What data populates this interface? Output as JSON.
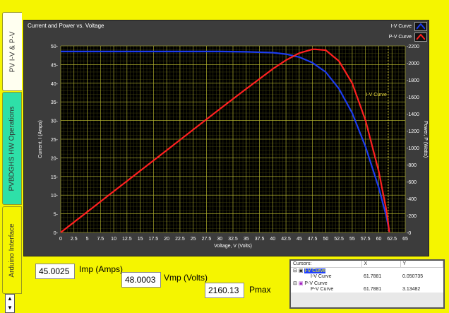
{
  "tabs": [
    {
      "label": "PV I-V & P-V",
      "active": true
    },
    {
      "label": "PVBDGHS HW Operations",
      "active": false
    },
    {
      "label": "Arduino Interface",
      "active": false
    }
  ],
  "graph": {
    "title": "Current and Power vs. Voltage",
    "legend": [
      {
        "label": "I-V Curve",
        "color": "#1c3cf0"
      },
      {
        "label": "P-V Curve",
        "color": "#ff2020"
      }
    ],
    "cursor_label": "I-V Curve"
  },
  "chart_data": {
    "type": "line",
    "xlabel": "Voltage, V (Volts)",
    "ylabel_left": "Current, I (Amps)",
    "ylabel_right": "Power, P (Watts)",
    "xlim": [
      0,
      65
    ],
    "ylim_left": [
      0,
      50
    ],
    "ylim_right": [
      0,
      2200
    ],
    "x_ticks": [
      "0",
      "2.5",
      "5",
      "7.5",
      "10",
      "12.5",
      "15",
      "17.5",
      "20",
      "22.5",
      "25",
      "27.5",
      "30",
      "32.5",
      "35",
      "37.5",
      "40",
      "42.5",
      "45",
      "47.5",
      "50",
      "52.5",
      "55",
      "57.5",
      "60",
      "62.5",
      "65"
    ],
    "y_left_ticks": [
      "0",
      "5",
      "10",
      "15",
      "20",
      "25",
      "30",
      "35",
      "40",
      "45",
      "50"
    ],
    "y_right_ticks": [
      "0",
      "200",
      "400",
      "600",
      "800",
      "1000",
      "1200",
      "1400",
      "1600",
      "1800",
      "2000",
      "2200"
    ],
    "series": [
      {
        "name": "I-V Curve",
        "axis": "left",
        "color": "#1c3cf0",
        "x": [
          0,
          10,
          20,
          30,
          35,
          40,
          42.5,
          45,
          47.5,
          50,
          52.5,
          55,
          57.5,
          60,
          61.5,
          62
        ],
        "y": [
          48.5,
          48.5,
          48.5,
          48.5,
          48.4,
          48.2,
          47.8,
          47.0,
          45.5,
          43.0,
          38.5,
          32.0,
          23.0,
          12.0,
          4.0,
          0.05
        ]
      },
      {
        "name": "P-V Curve",
        "axis": "right",
        "color": "#ff2020",
        "x": [
          0,
          10,
          20,
          30,
          35,
          40,
          42.5,
          45,
          47.5,
          48,
          50,
          52.5,
          55,
          57.5,
          60,
          61.5,
          62
        ],
        "y": [
          0,
          485,
          970,
          1455,
          1694,
          1928,
          2032,
          2115,
          2160,
          2160,
          2150,
          2021,
          1760,
          1323,
          720,
          246,
          3
        ]
      }
    ]
  },
  "indicators": {
    "imp": {
      "value": "45.0025",
      "label": "Imp (Amps)"
    },
    "vmp": {
      "value": "48.0003",
      "label": "Vmp (Volts)"
    },
    "pmax": {
      "value": "2160.13",
      "label": "Pmax"
    }
  },
  "cursors": {
    "headers": [
      "Cursors:",
      "X",
      "Y"
    ],
    "rows": [
      {
        "name": "I-V Curve",
        "sub": "I-V Curve",
        "x": "61.7881",
        "y": "0.050735"
      },
      {
        "name": "P-V Curve",
        "sub": "P-V Curve",
        "x": "61.7881",
        "y": "3.13482"
      }
    ]
  }
}
